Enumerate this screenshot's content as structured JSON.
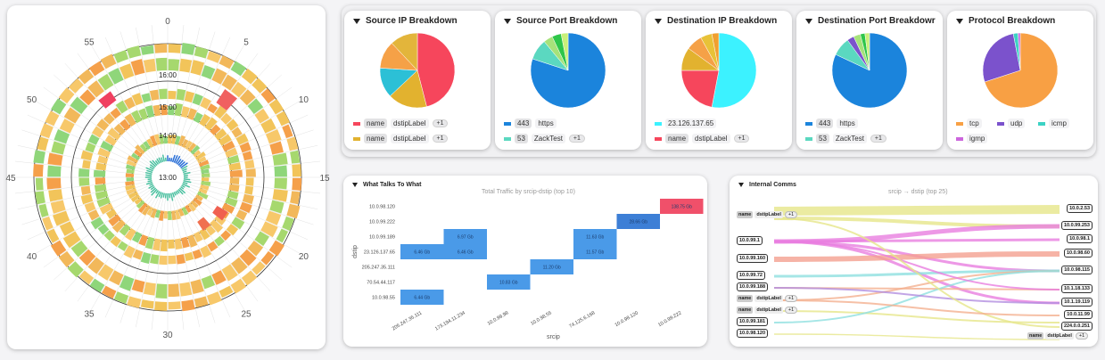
{
  "radial": {
    "hour_labels": [
      "13:00",
      "14:00",
      "15:00",
      "16:00"
    ],
    "minute_labels": [
      "0",
      "5",
      "10",
      "15",
      "20",
      "25",
      "30",
      "35",
      "40",
      "45",
      "50",
      "55"
    ]
  },
  "pies": [
    {
      "title": "Source IP Breakdown",
      "slices": [
        {
          "color": "#f6465c",
          "value": 0.46
        },
        {
          "color": "#e2b22f",
          "value": 0.17
        },
        {
          "color": "#2cc0d6",
          "value": 0.13
        },
        {
          "color": "#f5a147",
          "value": 0.12
        },
        {
          "color": "#e3b53b",
          "value": 0.12
        }
      ],
      "legend": [
        {
          "color": "#f6465c",
          "k": "name",
          "v": "dstipLabel",
          "plus": "+1"
        },
        {
          "color": "#e2b22f",
          "k": "name",
          "v": "dstipLabel",
          "plus": "+1"
        }
      ]
    },
    {
      "title": "Source Port Breakdown",
      "slices": [
        {
          "color": "#1b84dc",
          "value": 0.8
        },
        {
          "color": "#5bd8c0",
          "value": 0.09
        },
        {
          "color": "#a6e27a",
          "value": 0.04
        },
        {
          "color": "#2ec64a",
          "value": 0.04
        },
        {
          "color": "#c9f07a",
          "value": 0.03
        }
      ],
      "legend": [
        {
          "color": "#1b84dc",
          "k": "443",
          "v": "https",
          "plus": ""
        },
        {
          "color": "#5bd8c0",
          "k": "53",
          "v": "ZackTest",
          "plus": "+1"
        }
      ]
    },
    {
      "title": "Destination IP Breakdown",
      "slices": [
        {
          "color": "#3cf2ff",
          "value": 0.53
        },
        {
          "color": "#f6465c",
          "value": 0.22
        },
        {
          "color": "#e2b22f",
          "value": 0.1
        },
        {
          "color": "#f5a147",
          "value": 0.07
        },
        {
          "color": "#e8c238",
          "value": 0.05
        },
        {
          "color": "#f0a030",
          "value": 0.03
        }
      ],
      "legend": [
        {
          "color": "#3cf2ff",
          "k": "",
          "v": "23.126.137.65",
          "plus": ""
        },
        {
          "color": "#f6465c",
          "k": "name",
          "v": "dstipLabel",
          "plus": "+1"
        }
      ]
    },
    {
      "title": "Destination Port Breakdowr",
      "slices": [
        {
          "color": "#1b84dc",
          "value": 0.82
        },
        {
          "color": "#5bd8c0",
          "value": 0.08
        },
        {
          "color": "#7b52cc",
          "value": 0.03
        },
        {
          "color": "#a6e27a",
          "value": 0.03
        },
        {
          "color": "#2ec64a",
          "value": 0.02
        },
        {
          "color": "#c9f07a",
          "value": 0.02
        }
      ],
      "legend": [
        {
          "color": "#1b84dc",
          "k": "443",
          "v": "https",
          "plus": ""
        },
        {
          "color": "#5bd8c0",
          "k": "53",
          "v": "ZackTest",
          "plus": "+1"
        }
      ]
    },
    {
      "title": "Protocol Breakdown",
      "slices": [
        {
          "color": "#f8a044",
          "value": 0.7
        },
        {
          "color": "#7b52cc",
          "value": 0.27
        },
        {
          "color": "#3cd2c4",
          "value": 0.02
        },
        {
          "color": "#cc66dd",
          "value": 0.01
        }
      ],
      "legend": [
        {
          "color": "#f8a044",
          "k": "",
          "v": "tcp",
          "plus": ""
        },
        {
          "color": "#7b52cc",
          "k": "",
          "v": "udp",
          "plus": ""
        },
        {
          "color": "#3cd2c4",
          "k": "",
          "v": "icmp",
          "plus": ""
        },
        {
          "color": "#cc66dd",
          "k": "",
          "v": "igmp",
          "plus": ""
        }
      ]
    }
  ],
  "heatmap": {
    "title": "What Talks To What",
    "subtitle": "Total Traffic by srcip-dstip (top 10)",
    "xlabel": "srcip",
    "ylabel": "dstip",
    "y_categories": [
      "10.0.98.120",
      "10.0.99.222",
      "10.0.99.189",
      "23.126.137.65",
      "205.247.35.111",
      "70.54.44.117",
      "10.0.98.55"
    ],
    "x_categories": [
      "205.247.35.111",
      "173.194.11.234",
      "10.0.99.98",
      "10.0.98.55",
      "74.125.6.168",
      "10.0.98.120",
      "10.0.99.222"
    ],
    "cells": [
      {
        "x": 0,
        "y": 3,
        "label": "6.46 Gb",
        "color": "#4a9ae8"
      },
      {
        "x": 1,
        "y": 2,
        "label": "6.97 Gb",
        "color": "#4a9ae8"
      },
      {
        "x": 1,
        "y": 3,
        "label": "6.46 Gb",
        "color": "#4a9ae8"
      },
      {
        "x": 2,
        "y": 5,
        "label": "10.83 Gb",
        "color": "#4a9ae8"
      },
      {
        "x": 3,
        "y": 4,
        "label": "11.20 Gb",
        "color": "#4a9ae8"
      },
      {
        "x": 4,
        "y": 2,
        "label": "11.63 Gb",
        "color": "#4a9ae8"
      },
      {
        "x": 4,
        "y": 3,
        "label": "11.57 Gb",
        "color": "#4a9ae8"
      },
      {
        "x": 5,
        "y": 1,
        "label": "28.66 Gb",
        "color": "#3d7fd6"
      },
      {
        "x": 6,
        "y": 0,
        "label": "138.75 Gb",
        "color": "#f0506a"
      },
      {
        "x": 0,
        "y": 6,
        "label": "6.44 Gb",
        "color": "#4a9ae8"
      }
    ]
  },
  "sankey": {
    "title": "Internal Comms",
    "subtitle": "srcip → dstip (top 25)",
    "left_nodes": [
      "10.0.99.1",
      "10.0.99.160",
      "10.0.99.72",
      "10.0.99.188",
      "10.0.99.181",
      "10.0.98.120"
    ],
    "right_nodes": [
      "10.0.2.53",
      "10.0.99.253",
      "10.0.98.1",
      "10.0.98.60",
      "10.0.98.115",
      "10.1.18.133",
      "10.1.19.119",
      "10.0.11.99",
      "224.0.0.251"
    ],
    "pair_key": "name",
    "pair_val": "dstipLabel",
    "pair_plus": "+1"
  }
}
